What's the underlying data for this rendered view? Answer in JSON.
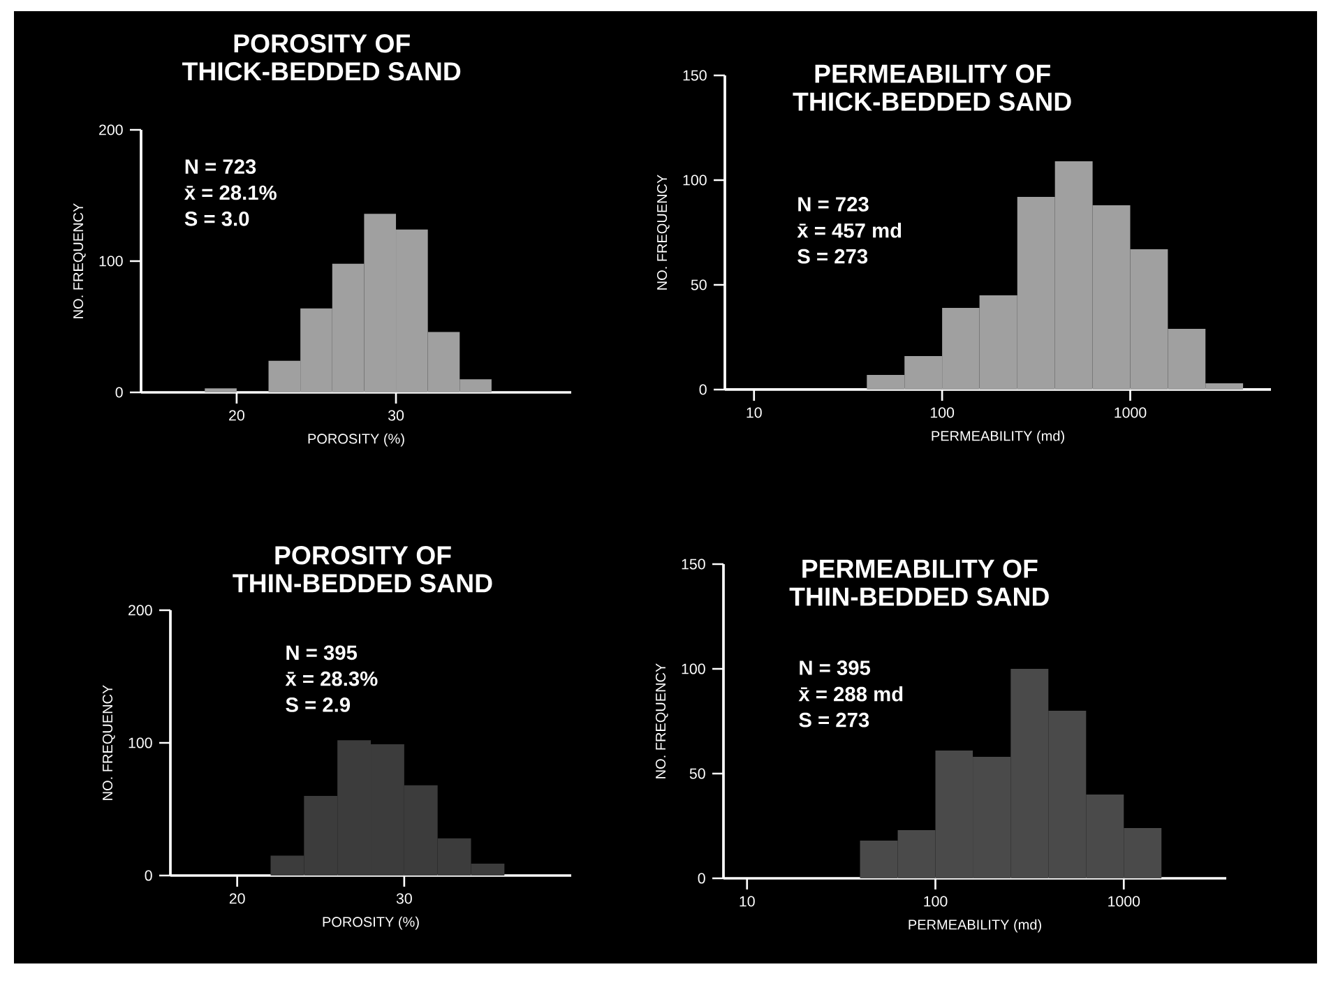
{
  "chart_data": [
    {
      "type": "histogram",
      "title": "POROSITY OF\nTHICK-BEDDED SAND",
      "xlabel": "POROSITY (%)",
      "ylabel": "NO. FREQUENCY",
      "color": "#a0a0a0",
      "bins": [
        18,
        20,
        22,
        24,
        26,
        28,
        30,
        32,
        34,
        36
      ],
      "values": [
        3,
        0,
        24,
        64,
        98,
        136,
        124,
        46,
        10
      ],
      "xlim": [
        14,
        41
      ],
      "ylim": [
        0,
        200
      ],
      "xticks": [
        20,
        30
      ],
      "yticks": [
        0,
        100,
        200
      ],
      "annotations": [
        "N  =  723",
        "x̄  =  28.1%",
        "S  =  3.0"
      ]
    },
    {
      "type": "histogram",
      "title": "PERMEABILITY OF\nTHICK-BEDDED SAND",
      "xlabel": "PERMEABILITY (md)",
      "ylabel": "NO. FREQUENCY",
      "color": "#a0a0a0",
      "log": "x",
      "bins": [
        39.8,
        63.1,
        100,
        158,
        251,
        398,
        631,
        1000,
        1585,
        2512,
        3981
      ],
      "values": [
        7,
        16,
        39,
        45,
        92,
        109,
        88,
        67,
        29,
        3
      ],
      "xlim": [
        7,
        5600
      ],
      "ylim": [
        0,
        150
      ],
      "xticks": [
        10,
        100,
        1000
      ],
      "yticks": [
        0,
        50,
        100,
        150
      ],
      "annotations": [
        "N = 723",
        "x̄ = 457 md",
        "S = 273"
      ]
    },
    {
      "type": "histogram",
      "title": "POROSITY OF\nTHIN-BEDDED SAND",
      "xlabel": "POROSITY (%)",
      "ylabel": "NO. FREQUENCY",
      "color": "#3c3c3c",
      "bins": [
        22,
        24,
        26,
        28,
        30,
        32,
        34,
        36
      ],
      "values": [
        15,
        60,
        102,
        99,
        68,
        28,
        9
      ],
      "xlim": [
        16,
        40
      ],
      "ylim": [
        0,
        200
      ],
      "xticks": [
        20,
        30
      ],
      "yticks": [
        0,
        100,
        200
      ],
      "annotations": [
        "N  =  395",
        "x̄  =  28.3%",
        "S  =  2.9"
      ]
    },
    {
      "type": "histogram",
      "title": "PERMEABILITY OF\nTHIN-BEDDED SAND",
      "xlabel": "PERMEABILITY (md)",
      "ylabel": "NO. FREQUENCY",
      "color": "#4a4a4a",
      "log": "x",
      "bins": [
        39.8,
        63.1,
        100,
        158,
        251,
        398,
        631,
        1000,
        1585
      ],
      "values": [
        18,
        23,
        61,
        58,
        100,
        80,
        40,
        24
      ],
      "xlim": [
        7.5,
        3500
      ],
      "ylim": [
        0,
        150
      ],
      "xticks": [
        10,
        100,
        1000
      ],
      "yticks": [
        0,
        50,
        100,
        150
      ],
      "annotations": [
        "N = 395",
        "x̄ = 288 md",
        "S = 273"
      ]
    }
  ]
}
